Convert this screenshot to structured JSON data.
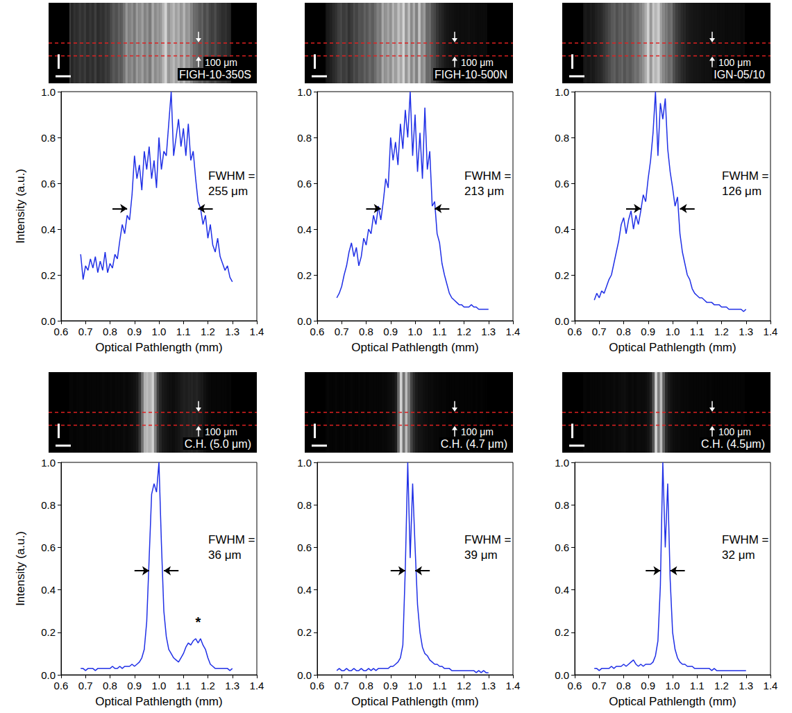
{
  "chart_data": [
    {
      "type": "line",
      "image_label": "FIGH-10-350S",
      "scale_label": "100 μm",
      "x_label": "Optical Pathlength (mm)",
      "y_label": "Intensity (a.u.)",
      "color": "#1f2fe6",
      "grid": false,
      "xlim": [
        0.6,
        1.4
      ],
      "xticks": [
        0.6,
        0.7,
        0.8,
        0.9,
        {
          "value": 1,
          "label": "1.0"
        },
        1.1,
        1.2,
        1.3,
        1.4
      ],
      "ylim": [
        0,
        1
      ],
      "yticks": [
        {
          "value": 0,
          "label": "0.0"
        },
        0.2,
        0.4,
        0.6,
        0.8,
        {
          "value": 1,
          "label": "1.0"
        }
      ],
      "x": [
        0.68,
        0.69,
        0.7,
        0.71,
        0.72,
        0.73,
        0.74,
        0.75,
        0.76,
        0.77,
        0.78,
        0.79,
        0.8,
        0.81,
        0.82,
        0.83,
        0.84,
        0.85,
        0.86,
        0.87,
        0.88,
        0.89,
        0.9,
        0.91,
        0.92,
        0.93,
        0.94,
        0.95,
        0.96,
        0.97,
        0.98,
        0.99,
        1.0,
        1.01,
        1.02,
        1.03,
        1.04,
        1.05,
        1.06,
        1.07,
        1.08,
        1.09,
        1.1,
        1.11,
        1.12,
        1.13,
        1.14,
        1.15,
        1.16,
        1.17,
        1.18,
        1.19,
        1.2,
        1.21,
        1.22,
        1.23,
        1.24,
        1.25,
        1.26,
        1.27,
        1.28,
        1.29,
        1.3
      ],
      "values": [
        0.29,
        0.18,
        0.24,
        0.22,
        0.27,
        0.23,
        0.28,
        0.21,
        0.26,
        0.22,
        0.3,
        0.21,
        0.25,
        0.23,
        0.29,
        0.27,
        0.35,
        0.42,
        0.38,
        0.46,
        0.44,
        0.55,
        0.72,
        0.62,
        0.68,
        0.57,
        0.74,
        0.66,
        0.76,
        0.62,
        0.7,
        0.58,
        0.8,
        0.66,
        0.74,
        0.72,
        0.86,
        1.0,
        0.72,
        0.8,
        0.88,
        0.76,
        0.84,
        0.72,
        0.86,
        0.7,
        0.74,
        0.62,
        0.52,
        0.49,
        0.42,
        0.46,
        0.36,
        0.42,
        0.33,
        0.3,
        0.36,
        0.28,
        0.25,
        0.22,
        0.24,
        0.19,
        0.17
      ],
      "annotation": [
        "FWHM =",
        "255 μm"
      ],
      "fwhm_bounds": [
        0.87,
        1.16
      ],
      "fwhm_level": 0.49
    },
    {
      "type": "line",
      "image_label": "FIGH-10-500N",
      "scale_label": "100 μm",
      "x_label": "Optical Pathlength (mm)",
      "color": "#1f2fe6",
      "grid": false,
      "xlim": [
        0.6,
        1.4
      ],
      "xticks": [
        0.6,
        0.7,
        0.8,
        0.9,
        {
          "value": 1,
          "label": "1.0"
        },
        1.1,
        1.2,
        1.3,
        1.4
      ],
      "ylim": [
        0,
        1
      ],
      "yticks": [
        {
          "value": 0,
          "label": "0.0"
        },
        0.2,
        0.4,
        0.6,
        0.8,
        {
          "value": 1,
          "label": "1.0"
        }
      ],
      "x": [
        0.68,
        0.69,
        0.7,
        0.71,
        0.72,
        0.73,
        0.74,
        0.75,
        0.76,
        0.77,
        0.78,
        0.79,
        0.8,
        0.81,
        0.82,
        0.83,
        0.84,
        0.85,
        0.86,
        0.87,
        0.88,
        0.89,
        0.9,
        0.91,
        0.92,
        0.93,
        0.94,
        0.95,
        0.96,
        0.97,
        0.98,
        0.99,
        1.0,
        1.01,
        1.02,
        1.03,
        1.04,
        1.05,
        1.06,
        1.07,
        1.08,
        1.09,
        1.1,
        1.11,
        1.12,
        1.13,
        1.14,
        1.15,
        1.16,
        1.17,
        1.18,
        1.19,
        1.2,
        1.21,
        1.22,
        1.23,
        1.24,
        1.25,
        1.26,
        1.27,
        1.28,
        1.29,
        1.3
      ],
      "values": [
        0.1,
        0.12,
        0.15,
        0.2,
        0.24,
        0.3,
        0.34,
        0.28,
        0.32,
        0.24,
        0.28,
        0.36,
        0.33,
        0.4,
        0.38,
        0.46,
        0.42,
        0.5,
        0.44,
        0.52,
        0.62,
        0.58,
        0.8,
        0.7,
        0.78,
        0.68,
        0.86,
        0.75,
        0.92,
        0.8,
        1.0,
        0.72,
        0.9,
        0.65,
        0.82,
        0.62,
        0.93,
        0.66,
        0.74,
        0.5,
        0.52,
        0.38,
        0.34,
        0.25,
        0.2,
        0.16,
        0.12,
        0.1,
        0.09,
        0.08,
        0.07,
        0.07,
        0.06,
        0.06,
        0.06,
        0.07,
        0.06,
        0.06,
        0.05,
        0.05,
        0.05,
        0.05,
        0.05
      ],
      "annotation": [
        "FWHM =",
        "213 μm"
      ],
      "fwhm_bounds": [
        0.86,
        1.08
      ],
      "fwhm_level": 0.49
    },
    {
      "type": "line",
      "image_label": "IGN-05/10",
      "scale_label": "100 μm",
      "x_label": "Optical Pathlength (mm)",
      "color": "#1f2fe6",
      "grid": false,
      "xlim": [
        0.6,
        1.4
      ],
      "xticks": [
        0.6,
        0.7,
        0.8,
        0.9,
        {
          "value": 1,
          "label": "1.0"
        },
        1.1,
        1.2,
        1.3,
        1.4
      ],
      "ylim": [
        0,
        1
      ],
      "yticks": [
        {
          "value": 0,
          "label": "0.0"
        },
        0.2,
        0.4,
        0.6,
        0.8,
        {
          "value": 1,
          "label": "1.0"
        }
      ],
      "x": [
        0.68,
        0.69,
        0.7,
        0.71,
        0.72,
        0.73,
        0.74,
        0.75,
        0.76,
        0.77,
        0.78,
        0.79,
        0.8,
        0.81,
        0.82,
        0.83,
        0.84,
        0.85,
        0.86,
        0.87,
        0.88,
        0.89,
        0.9,
        0.91,
        0.92,
        0.93,
        0.94,
        0.95,
        0.96,
        0.97,
        0.98,
        0.99,
        1.0,
        1.01,
        1.02,
        1.03,
        1.04,
        1.05,
        1.06,
        1.07,
        1.08,
        1.09,
        1.1,
        1.11,
        1.12,
        1.13,
        1.14,
        1.15,
        1.16,
        1.17,
        1.18,
        1.19,
        1.2,
        1.21,
        1.22,
        1.23,
        1.24,
        1.25,
        1.26,
        1.27,
        1.28,
        1.29,
        1.3
      ],
      "values": [
        0.09,
        0.12,
        0.1,
        0.13,
        0.12,
        0.15,
        0.18,
        0.2,
        0.25,
        0.3,
        0.35,
        0.42,
        0.45,
        0.38,
        0.44,
        0.48,
        0.4,
        0.46,
        0.42,
        0.48,
        0.55,
        0.52,
        0.62,
        0.7,
        0.82,
        1.0,
        0.72,
        0.95,
        0.88,
        0.97,
        0.75,
        0.65,
        0.58,
        0.5,
        0.54,
        0.38,
        0.3,
        0.25,
        0.2,
        0.18,
        0.14,
        0.12,
        0.11,
        0.1,
        0.1,
        0.09,
        0.08,
        0.08,
        0.08,
        0.07,
        0.07,
        0.07,
        0.06,
        0.06,
        0.06,
        0.05,
        0.05,
        0.05,
        0.05,
        0.05,
        0.05,
        0.04,
        0.05
      ],
      "annotation": [
        "FWHM =",
        "126 μm"
      ],
      "fwhm_bounds": [
        0.87,
        1.03
      ],
      "fwhm_level": 0.49
    },
    {
      "type": "line",
      "image_label": "C.H. (5.0 μm)",
      "scale_label": "100 μm",
      "x_label": "Optical Pathlength (mm)",
      "y_label": "Intensity (a.u.)",
      "color": "#1f2fe6",
      "grid": false,
      "xlim": [
        0.6,
        1.4
      ],
      "xticks": [
        0.6,
        0.7,
        0.8,
        0.9,
        {
          "value": 1,
          "label": "1.0"
        },
        1.1,
        1.2,
        1.3,
        1.4
      ],
      "ylim": [
        0,
        1
      ],
      "yticks": [
        {
          "value": 0,
          "label": "0.0"
        },
        0.2,
        0.4,
        0.6,
        0.8,
        {
          "value": 1,
          "label": "1.0"
        }
      ],
      "x": [
        0.68,
        0.69,
        0.7,
        0.71,
        0.72,
        0.73,
        0.74,
        0.75,
        0.76,
        0.77,
        0.78,
        0.79,
        0.8,
        0.81,
        0.82,
        0.83,
        0.84,
        0.85,
        0.86,
        0.87,
        0.88,
        0.89,
        0.9,
        0.91,
        0.92,
        0.93,
        0.94,
        0.95,
        0.96,
        0.97,
        0.98,
        0.99,
        1.0,
        1.01,
        1.02,
        1.03,
        1.04,
        1.05,
        1.06,
        1.07,
        1.08,
        1.09,
        1.1,
        1.11,
        1.12,
        1.13,
        1.14,
        1.15,
        1.16,
        1.17,
        1.18,
        1.19,
        1.2,
        1.21,
        1.22,
        1.23,
        1.24,
        1.25,
        1.26,
        1.27,
        1.28,
        1.29,
        1.3
      ],
      "values": [
        0.03,
        0.03,
        0.02,
        0.03,
        0.03,
        0.03,
        0.02,
        0.03,
        0.03,
        0.03,
        0.03,
        0.03,
        0.03,
        0.04,
        0.03,
        0.03,
        0.04,
        0.03,
        0.04,
        0.04,
        0.04,
        0.05,
        0.04,
        0.05,
        0.06,
        0.08,
        0.12,
        0.25,
        0.55,
        0.85,
        0.9,
        0.86,
        1.0,
        0.62,
        0.3,
        0.18,
        0.12,
        0.1,
        0.08,
        0.07,
        0.06,
        0.08,
        0.1,
        0.13,
        0.15,
        0.14,
        0.16,
        0.17,
        0.15,
        0.17,
        0.14,
        0.12,
        0.08,
        0.05,
        0.04,
        0.03,
        0.03,
        0.03,
        0.03,
        0.03,
        0.03,
        0.02,
        0.03
      ],
      "annotation": [
        "FWHM =",
        "36 μm"
      ],
      "fwhm_bounds": [
        0.96,
        1.02
      ],
      "fwhm_level": 0.49,
      "note": {
        "text": "*",
        "x": 1.16,
        "y": 0.25
      }
    },
    {
      "type": "line",
      "image_label": "C.H. (4.7 μm)",
      "scale_label": "100 μm",
      "x_label": "Optical Pathlength (mm)",
      "color": "#1f2fe6",
      "grid": false,
      "xlim": [
        0.6,
        1.4
      ],
      "xticks": [
        0.6,
        0.7,
        0.8,
        0.9,
        {
          "value": 1,
          "label": "1.0"
        },
        1.1,
        1.2,
        1.3,
        1.4
      ],
      "ylim": [
        0,
        1
      ],
      "yticks": [
        {
          "value": 0,
          "label": "0.0"
        },
        0.2,
        0.4,
        0.6,
        0.8,
        {
          "value": 1,
          "label": "1.0"
        }
      ],
      "x": [
        0.68,
        0.69,
        0.7,
        0.71,
        0.72,
        0.73,
        0.74,
        0.75,
        0.76,
        0.77,
        0.78,
        0.79,
        0.8,
        0.81,
        0.82,
        0.83,
        0.84,
        0.85,
        0.86,
        0.87,
        0.88,
        0.89,
        0.9,
        0.91,
        0.92,
        0.93,
        0.94,
        0.95,
        0.96,
        0.97,
        0.98,
        0.99,
        1.0,
        1.01,
        1.02,
        1.03,
        1.04,
        1.05,
        1.06,
        1.07,
        1.08,
        1.09,
        1.1,
        1.11,
        1.12,
        1.13,
        1.14,
        1.15,
        1.16,
        1.17,
        1.18,
        1.19,
        1.2,
        1.21,
        1.22,
        1.23,
        1.24,
        1.25,
        1.26,
        1.27,
        1.28,
        1.29,
        1.3
      ],
      "values": [
        0.02,
        0.03,
        0.02,
        0.02,
        0.03,
        0.02,
        0.02,
        0.03,
        0.02,
        0.02,
        0.03,
        0.02,
        0.02,
        0.03,
        0.02,
        0.03,
        0.02,
        0.03,
        0.03,
        0.03,
        0.03,
        0.03,
        0.04,
        0.04,
        0.05,
        0.06,
        0.08,
        0.14,
        0.5,
        1.0,
        0.55,
        0.9,
        0.6,
        0.33,
        0.2,
        0.13,
        0.1,
        0.09,
        0.07,
        0.06,
        0.05,
        0.05,
        0.04,
        0.04,
        0.03,
        0.03,
        0.03,
        0.02,
        0.02,
        0.02,
        0.02,
        0.02,
        0.02,
        0.02,
        0.02,
        0.02,
        0.02,
        0.01,
        0.02,
        0.01,
        0.02,
        0.01,
        0.01
      ],
      "annotation": [
        "FWHM =",
        "39 μm"
      ],
      "fwhm_bounds": [
        0.96,
        1.0
      ],
      "fwhm_level": 0.49
    },
    {
      "type": "line",
      "image_label": "C.H. (4.5μm)",
      "scale_label": "100 μm",
      "x_label": "Optical Pathlength (mm)",
      "color": "#1f2fe6",
      "grid": false,
      "xlim": [
        0.6,
        1.4
      ],
      "xticks": [
        0.6,
        0.7,
        0.8,
        0.9,
        {
          "value": 1,
          "label": "1.0"
        },
        1.1,
        1.2,
        1.3,
        1.4
      ],
      "ylim": [
        0,
        1
      ],
      "yticks": [
        {
          "value": 0,
          "label": "0.0"
        },
        0.2,
        0.4,
        0.6,
        0.8,
        {
          "value": 1,
          "label": "1.0"
        }
      ],
      "x": [
        0.68,
        0.69,
        0.7,
        0.71,
        0.72,
        0.73,
        0.74,
        0.75,
        0.76,
        0.77,
        0.78,
        0.79,
        0.8,
        0.81,
        0.82,
        0.83,
        0.84,
        0.85,
        0.86,
        0.87,
        0.88,
        0.89,
        0.9,
        0.91,
        0.92,
        0.93,
        0.94,
        0.95,
        0.96,
        0.97,
        0.98,
        0.99,
        1.0,
        1.01,
        1.02,
        1.03,
        1.04,
        1.05,
        1.06,
        1.07,
        1.08,
        1.09,
        1.1,
        1.11,
        1.12,
        1.13,
        1.14,
        1.15,
        1.16,
        1.17,
        1.18,
        1.19,
        1.2,
        1.21,
        1.22,
        1.23,
        1.24,
        1.25,
        1.26,
        1.27,
        1.28,
        1.29,
        1.3
      ],
      "values": [
        0.03,
        0.03,
        0.02,
        0.03,
        0.03,
        0.03,
        0.03,
        0.04,
        0.03,
        0.04,
        0.04,
        0.04,
        0.05,
        0.04,
        0.05,
        0.06,
        0.07,
        0.05,
        0.04,
        0.05,
        0.04,
        0.05,
        0.05,
        0.05,
        0.06,
        0.09,
        0.16,
        0.42,
        1.0,
        0.6,
        0.9,
        0.45,
        0.2,
        0.12,
        0.08,
        0.06,
        0.05,
        0.05,
        0.04,
        0.04,
        0.04,
        0.03,
        0.03,
        0.03,
        0.03,
        0.03,
        0.03,
        0.03,
        0.02,
        0.03,
        0.02,
        0.02,
        0.02,
        0.02,
        0.02,
        0.02,
        0.02,
        0.02,
        0.02,
        0.02,
        0.02,
        0.02,
        0.02
      ],
      "annotation": [
        "FWHM =",
        "32 μm"
      ],
      "fwhm_bounds": [
        0.95,
        0.99
      ],
      "fwhm_level": 0.49
    }
  ]
}
